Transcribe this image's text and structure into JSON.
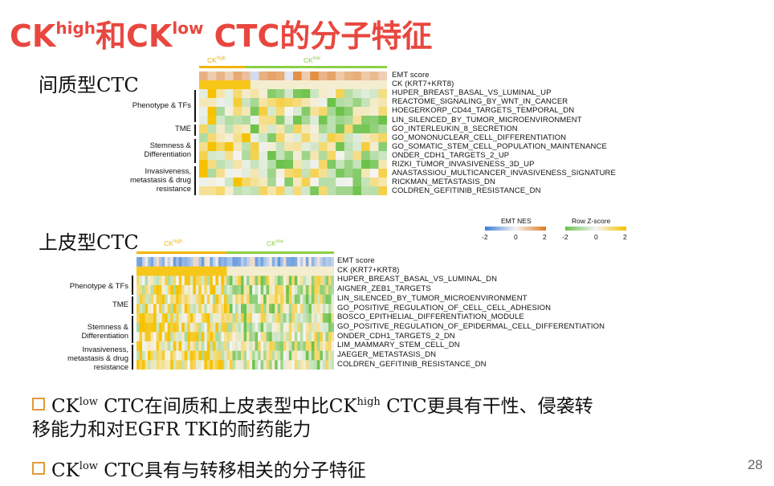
{
  "title": {
    "part1": "CK",
    "sup1": "high",
    "part2": "和CK",
    "sup2": "low",
    "part3": " CTC的分子特征"
  },
  "mesenchymal": {
    "label": "间质型CTC",
    "tags": {
      "high_base": "CK",
      "high_sup": "high",
      "low_base": "CK",
      "low_sup": "low"
    },
    "tag_colors": {
      "high": "#f2b400",
      "low": "#8ccf45"
    },
    "rows": [
      "EMT score",
      "CK (KRT7+KRT8)",
      "HUPER_BREAST_BASAL_VS_LUMINAL_UP",
      "REACTOME_SIGNALING_BY_WNT_IN_CANCER",
      "HOEGERKORP_CD44_TARGETS_TEMPORAL_DN",
      "LIN_SILENCED_BY_TUMOR_MICROENVIRONMENT",
      "GO_INTERLEUKIN_8_SECRETION",
      "GO_MONONUCLEAR_CELL_DIFFERENTIATION",
      "GO_SOMATIC_STEM_CELL_POPULATION_MAINTENANCE",
      "ONDER_CDH1_TARGETS_2_UP",
      "RIZKI_TUMOR_INVASIVENESS_3D_UP",
      "ANASTASSIOU_MULTICANCER_INVASIVENESS_SIGNATURE",
      "RICKMAN_METASTASIS_DN",
      "COLDREN_GEFITINIB_RESISTANCE_DN"
    ],
    "groups": [
      "Phenotype & TFs",
      "TME",
      "Stemness & Differentiation",
      "Invasiveness, metastasis & drug resistance"
    ]
  },
  "epithelial": {
    "label": "上皮型CTC",
    "tags": {
      "high_base": "CK",
      "high_sup": "high",
      "low_base": "CK",
      "low_sup": "low"
    },
    "rows": [
      "EMT score",
      "CK (KRT7+KRT8)",
      "HUPER_BREAST_BASAL_VS_LUMINAL_DN",
      "AIGNER_ZEB1_TARGETS",
      "LIN_SILENCED_BY_TUMOR_MICROENVIRONMENT",
      "GO_POSITIVE_REGULATION_OF_CELL_CELL_ADHESION",
      "BOSCO_EPITHELIAL_DIFFERENTIATION_MODULE",
      "GO_POSITIVE_REGULATION_OF_EPIDERMAL_CELL_DIFFERENTIATION",
      "ONDER_CDH1_TARGETS_2_DN",
      "LIM_MAMMARY_STEM_CELL_DN",
      "JAEGER_METASTASIS_DN",
      "COLDREN_GEFITINIB_RESISTANCE_DN"
    ],
    "groups": [
      "Phenotype & TFs",
      "TME",
      "Stemness & Differentiation",
      "Invasiveness, metastasis & drug resistance"
    ]
  },
  "legend": {
    "emt_title": "EMT NES",
    "emt_ticks": [
      "-2",
      "0",
      "2"
    ],
    "z_title": "Row Z-score",
    "z_ticks": [
      "-2",
      "0",
      "2"
    ],
    "colors": {
      "blue": "#3d7fd6",
      "white": "#f4f4f4",
      "orange": "#e07a1f",
      "green": "#6cc24a",
      "yellow": "#f6c200"
    }
  },
  "bullets": [
    {
      "a": "CK",
      "sup": "low",
      "b": " CTC在间质和上皮表型中比CK",
      "sup2": "high",
      "c": " CTC更具有干性、侵袭转",
      "line2": "移能力和对EGFR TKI的耐药能力"
    },
    {
      "a": "CK",
      "sup": "low",
      "b": " CTC具有与转移相关的分子特征"
    }
  ],
  "page_number": "28"
}
